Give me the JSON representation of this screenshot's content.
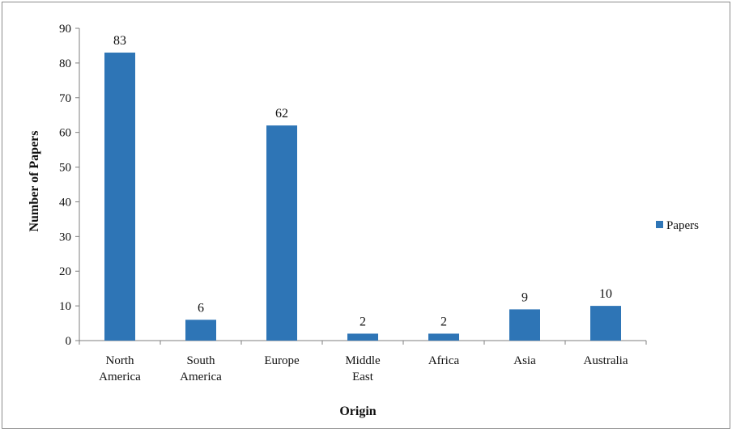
{
  "chart_data": {
    "type": "bar",
    "title": "",
    "xlabel": "Origin",
    "ylabel": "Number of Papers",
    "categories": [
      [
        "North",
        "America"
      ],
      [
        "South",
        "America"
      ],
      [
        "Europe"
      ],
      [
        "Middle",
        "East"
      ],
      [
        "Africa"
      ],
      [
        "Asia"
      ],
      [
        "Australia"
      ]
    ],
    "series": [
      {
        "name": "Papers",
        "values": [
          83,
          6,
          62,
          2,
          2,
          9,
          10
        ],
        "color": "#2e75b6"
      }
    ],
    "ylim": [
      0,
      90
    ],
    "yticks": [
      0,
      10,
      20,
      30,
      40,
      50,
      60,
      70,
      80,
      90
    ],
    "grid": false,
    "legend_position": "right",
    "data_labels": true
  }
}
